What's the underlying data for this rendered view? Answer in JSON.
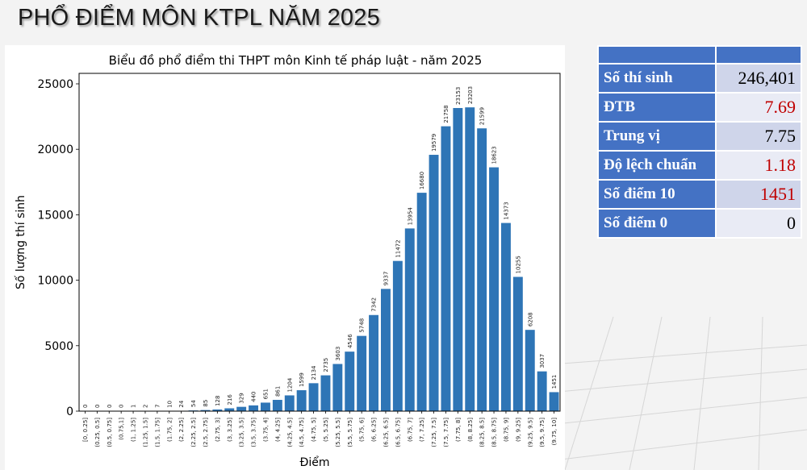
{
  "page": {
    "title": "PHỔ ĐIỂM MÔN KTPL NĂM 2025"
  },
  "stats_table": {
    "header": [
      "",
      ""
    ],
    "rows": [
      {
        "label": "Số thí sinh",
        "value": "246,401",
        "highlight": false
      },
      {
        "label": "ĐTB",
        "value": "7.69",
        "highlight": true
      },
      {
        "label": "Trung vị",
        "value": "7.75",
        "highlight": false
      },
      {
        "label": "Độ lệch chuẩn",
        "value": "1.18",
        "highlight": true
      },
      {
        "label": "Số điểm 10",
        "value": "1451",
        "highlight": true
      },
      {
        "label": "Số điểm 0",
        "value": "0",
        "highlight": false
      }
    ],
    "colors": {
      "header": "#4472c4",
      "highlight_text": "#c00000"
    }
  },
  "chart_data": {
    "type": "bar",
    "title": "Biểu đồ phổ điểm thi THPT môn Kinh tế pháp luật - năm 2025",
    "xlabel": "Điểm",
    "ylabel": "Số lượng thí sinh",
    "ylim": [
      0,
      25800
    ],
    "yticks": [
      0,
      5000,
      10000,
      15000,
      20000,
      25000
    ],
    "grid": false,
    "bar_color": "#2e75b6",
    "categories": [
      "[0, 0.25]",
      "(0.25, 0.5]",
      "(0.5, 0.75]",
      "(0.75,1]",
      "(1, 1.25]",
      "(1.25, 1.5]",
      "(1.5, 1.75]",
      "(1.75, 2]",
      "(2, 2.25]",
      "(2.25, 2.5]",
      "(2.5, 2.75]",
      "(2.75, 3]",
      "(3, 3.25]",
      "(3.25, 3.5]",
      "(3.5, 3.75]",
      "(3.75, 4]",
      "(4, 4.25]",
      "(4.25, 4.5]",
      "(4.5, 4.75]",
      "(4.75, 5]",
      "(5, 5.25]",
      "(5.25, 5.5]",
      "(5.5, 5.75]",
      "(5.75, 6]",
      "(6, 6.25]",
      "(6.25, 6.5]",
      "(6.5, 6.75]",
      "(6.75, 7]",
      "(7, 7.25]",
      "(7.25, 7.5]",
      "(7.5, 7.75]",
      "(7.75, 8]",
      "(8, 8.25]",
      "(8.25, 8.5]",
      "(8.5, 8.75]",
      "(8.75, 9]",
      "(9, 9.25]",
      "(9.25, 9.5]",
      "(9.5, 9.75]",
      "(9.75, 10]"
    ],
    "values": [
      0,
      0,
      0,
      0,
      1,
      2,
      7,
      10,
      24,
      54,
      85,
      128,
      216,
      329,
      440,
      651,
      861,
      1204,
      1599,
      2134,
      2735,
      3603,
      4546,
      5748,
      7342,
      9337,
      11472,
      13954,
      16680,
      19579,
      21758,
      23153,
      23203,
      21599,
      18623,
      14373,
      10255,
      6208,
      3037,
      1451
    ]
  }
}
